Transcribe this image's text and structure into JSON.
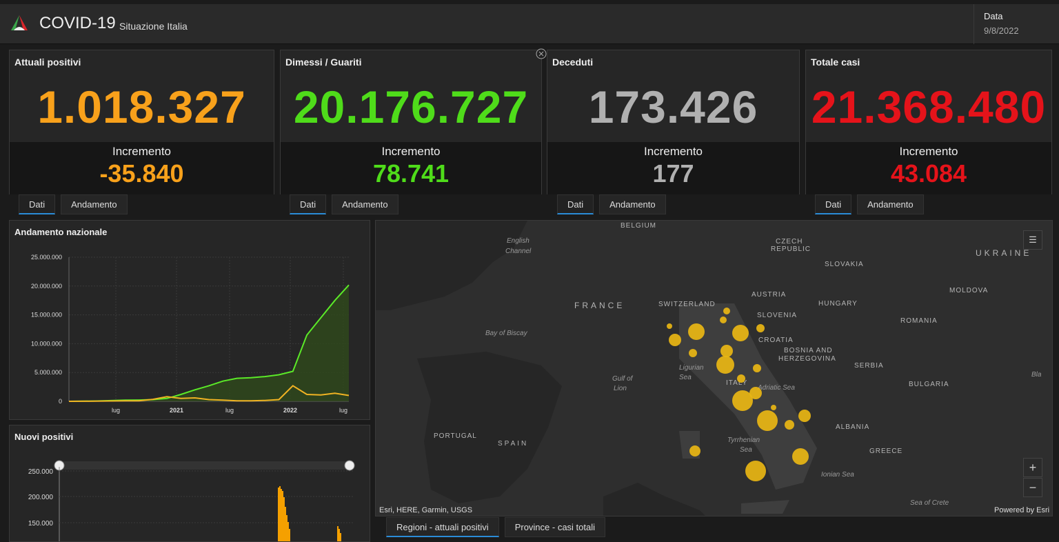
{
  "header": {
    "title": "COVID-19",
    "subtitle": "Situazione Italia",
    "date_label": "Data",
    "date_value": "9/8/2022"
  },
  "colors": {
    "orange": "#f8a11b",
    "green": "#4fdc1a",
    "gray": "#b0b0b0",
    "red": "#e5131a",
    "tab_accent": "#2a8cd8"
  },
  "cards": [
    {
      "title": "Attuali positivi",
      "value": "1.018.327",
      "inc_label": "Incremento",
      "inc_value": "-35.840"
    },
    {
      "title": "Dimessi / Guariti",
      "value": "20.176.727",
      "inc_label": "Incremento",
      "inc_value": "78.741"
    },
    {
      "title": "Deceduti",
      "value": "173.426",
      "inc_label": "Incremento",
      "inc_value": "177"
    },
    {
      "title": "Totale casi",
      "value": "21.368.480",
      "inc_label": "Incremento",
      "inc_value": "43.084"
    }
  ],
  "card_tabs": {
    "dati": "Dati",
    "andamento": "Andamento"
  },
  "trend_panel": {
    "title": "Andamento nazionale"
  },
  "new_panel": {
    "title": "Nuovi positivi"
  },
  "chart_data": [
    {
      "type": "area",
      "title": "Andamento nazionale",
      "ylim": [
        0,
        25000000
      ],
      "y_ticks": [
        "25.000.000",
        "20.000.000",
        "15.000.000",
        "10.000.000",
        "5.000.000",
        "0"
      ],
      "x_ticks": [
        "lug",
        "2021",
        "lug",
        "2022",
        "lug"
      ],
      "series": [
        {
          "color": "#5bea28",
          "values": [
            0,
            20000,
            60000,
            130000,
            200000,
            230000,
            300000,
            500000,
            1200000,
            2000000,
            2700000,
            3500000,
            4000000,
            4100000,
            4300000,
            4600000,
            5200000,
            11500000,
            14500000,
            17500000,
            20176727
          ]
        },
        {
          "color": "#f0b323",
          "values": [
            0,
            10000,
            30000,
            60000,
            90000,
            100000,
            350000,
            800000,
            500000,
            600000,
            300000,
            200000,
            100000,
            100000,
            150000,
            300000,
            2700000,
            1200000,
            1100000,
            1400000,
            1018327
          ]
        }
      ]
    },
    {
      "type": "bar",
      "title": "Nuovi positivi",
      "y_ticks": [
        "250.000",
        "200.000",
        "150.000"
      ]
    }
  ],
  "map": {
    "labels": {
      "belgium": "BELGIUM",
      "czech": "CZECH",
      "republic": "REPUBLIC",
      "ukraine": "UKRAINE",
      "slovakia": "SLOVAKIA",
      "austria": "AUSTRIA",
      "hungary": "HUNGARY",
      "moldova": "MOLDOVA",
      "france": "FRANCE",
      "switzerland": "SWITZERLAND",
      "slovenia": "SLOVENIA",
      "croatia": "CROATIA",
      "romania": "ROMANIA",
      "bosnia": "BOSNIA AND",
      "herzegovina": "HERZEGOVINA",
      "serbia": "SERBIA",
      "bulgaria": "BULGARIA",
      "italy": "ITALY",
      "portugal": "PORTUGAL",
      "spain": "SPAIN",
      "albania": "ALBANIA",
      "greece": "GREECE"
    },
    "seas": {
      "english": "English",
      "channel": "Channel",
      "biscay": "Bay of Biscay",
      "ligurian": "Ligurian",
      "sea1": "Sea",
      "gulf": "Gulf of",
      "lion": "Lion",
      "adriatic": "Adriatic Sea",
      "tyrrhenian": "Tyrrhenian",
      "sea2": "Sea",
      "ionian": "Ionian Sea",
      "crete": "Sea of Crete",
      "bla": "Bla"
    },
    "attribution": "Esri, HERE, Garmin, USGS",
    "powered": "Powered by Esri",
    "zoom_in": "+",
    "zoom_out": "−"
  },
  "bottom_tabs": {
    "regioni": "Regioni - attuali positivi",
    "province": "Province - casi totali"
  }
}
